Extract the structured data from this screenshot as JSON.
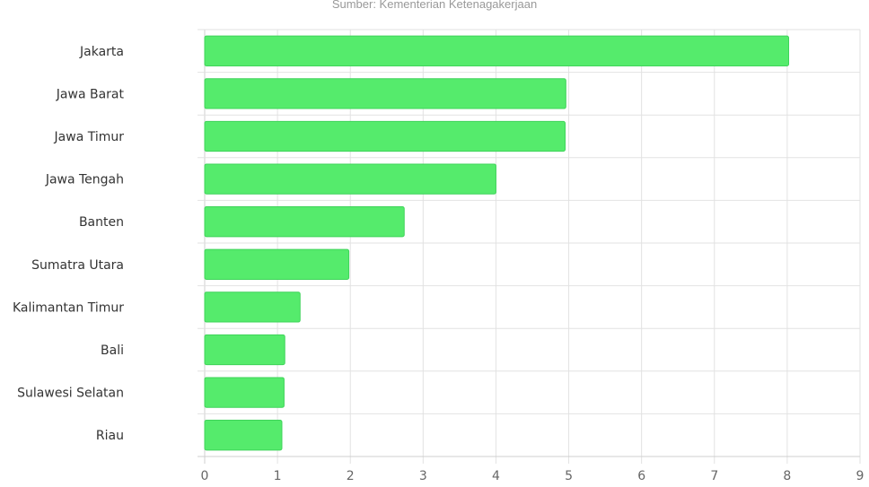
{
  "source_text": "Sumber: Kementerian Ketenagakerjaan",
  "chart_data": {
    "type": "bar",
    "orientation": "horizontal",
    "title": "",
    "xlabel": "",
    "ylabel": "",
    "categories": [
      "Jakarta",
      "Jawa Barat",
      "Jawa Timur",
      "Jawa Tengah",
      "Banten",
      "Sumatra Utara",
      "Kalimantan Timur",
      "Bali",
      "Sulawesi Selatan",
      "Riau"
    ],
    "values": [
      8.02,
      4.96,
      4.95,
      4.0,
      2.74,
      1.98,
      1.31,
      1.1,
      1.09,
      1.06
    ],
    "xlim": [
      0,
      9
    ],
    "xticks": [
      "0",
      "1",
      "2",
      "3",
      "4",
      "5",
      "6",
      "7",
      "8",
      "9"
    ],
    "grid": true,
    "bar_color": "#55eb6c",
    "bar_border_color": "#3fd45a",
    "grid_color": "#e2e2e2"
  }
}
